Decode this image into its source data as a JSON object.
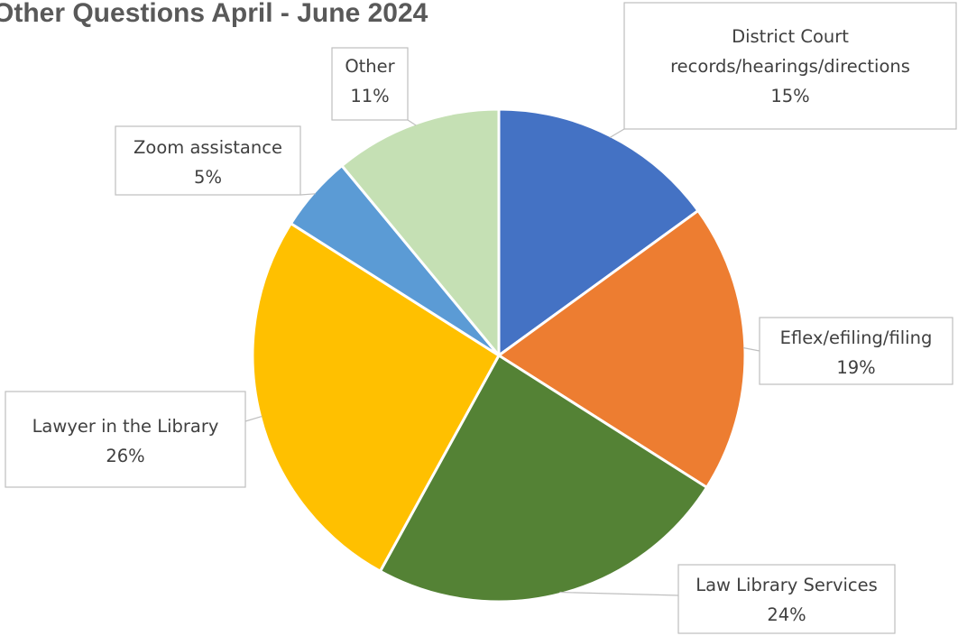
{
  "chart_data": {
    "type": "pie",
    "title": "Other Questions April - June 2024",
    "categories": [
      "District Court records/hearings/directions",
      "Eflex/efiling/filing",
      "Law Library Services",
      "Lawyer in the Library",
      "Zoom assistance",
      "Other"
    ],
    "values": [
      15,
      19,
      24,
      26,
      5,
      11
    ],
    "unit": "%",
    "start_angle_deg": 0,
    "direction": "clockwise",
    "colors": [
      "#4472C4",
      "#ED7D31",
      "#548235",
      "#FFC000",
      "#5B9BD5",
      "#C5E0B4"
    ],
    "legend": "none",
    "data_labels": [
      {
        "lines": [
          "District Court",
          "records/hearings/directions"
        ],
        "percent": "15%"
      },
      {
        "lines": [
          "Eflex/efiling/filing"
        ],
        "percent": "19%"
      },
      {
        "lines": [
          "Law Library Services"
        ],
        "percent": "24%"
      },
      {
        "lines": [
          "Lawyer in the Library"
        ],
        "percent": "26%"
      },
      {
        "lines": [
          "Zoom assistance"
        ],
        "percent": "5%"
      },
      {
        "lines": [
          "Other"
        ],
        "percent": "11%"
      }
    ]
  }
}
